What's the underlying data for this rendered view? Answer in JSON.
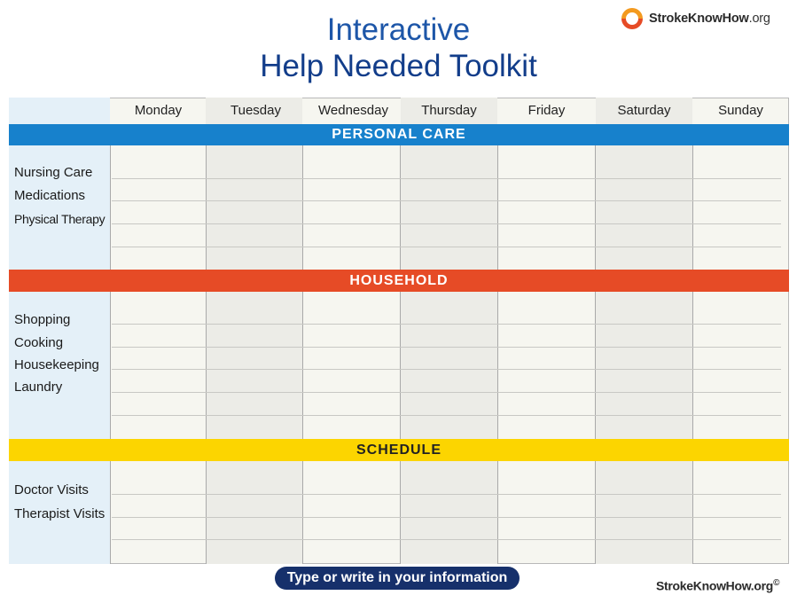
{
  "title": {
    "line1": "Interactive",
    "line2": "Help Needed Toolkit"
  },
  "logo": {
    "text_bold": "StrokeKnowHow",
    "text_suffix": ".org",
    "icon": "circular-arrows-icon",
    "colors": [
      "#e64b26",
      "#f39a1f"
    ]
  },
  "days": [
    "Monday",
    "Tuesday",
    "Wednesday",
    "Thursday",
    "Friday",
    "Saturday",
    "Sunday"
  ],
  "sections": {
    "personal_care": {
      "title": "PERSONAL CARE",
      "color": "#1781cc",
      "items": [
        "Nursing Care",
        "Medications",
        "Physical Therapy"
      ]
    },
    "household": {
      "title": "HOUSEHOLD",
      "color": "#e64b26",
      "items": [
        "Shopping",
        "Cooking",
        "Housekeeping",
        "Laundry"
      ]
    },
    "schedule": {
      "title": "SCHEDULE",
      "color": "#fcd500",
      "items": [
        "Doctor Visits",
        "Therapist Visits"
      ]
    }
  },
  "footer": {
    "button": "Type or write in your information",
    "site": "StrokeKnowHow.org",
    "copyright": "©"
  }
}
